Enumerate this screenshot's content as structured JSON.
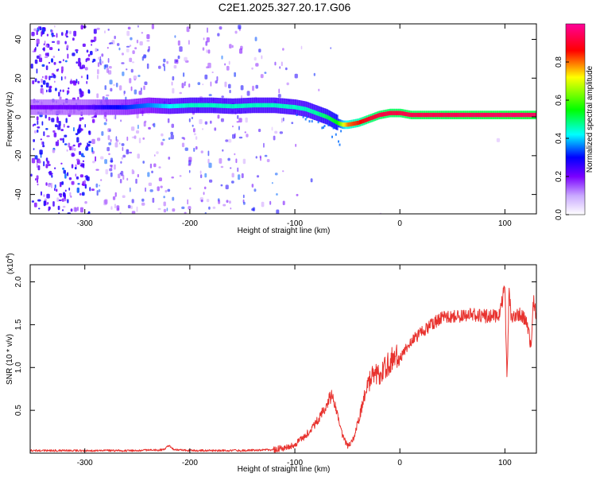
{
  "title": "C2E1.2025.327.20.17.G06",
  "chart_data": [
    {
      "type": "heatmap",
      "name": "spectrogram",
      "xlabel": "Height of straight line (km)",
      "ylabel": "Frequency (Hz)",
      "xlim": [
        -352,
        130
      ],
      "ylim": [
        -50,
        48
      ],
      "xticks": [
        -300,
        -200,
        -100,
        0,
        100
      ],
      "xtick_labels": [
        "-300",
        "-200",
        "-100",
        "0",
        "100"
      ],
      "yticks": [
        -40,
        -20,
        0,
        20,
        40
      ],
      "ytick_labels": [
        "-40",
        "-20",
        "0",
        "20",
        "40"
      ],
      "ridge": {
        "x": [
          -352,
          -300,
          -280,
          -260,
          -240,
          -220,
          -200,
          -180,
          -160,
          -140,
          -120,
          -100,
          -90,
          -80,
          -70,
          -60,
          -55,
          -50,
          -40,
          -30,
          -20,
          -10,
          0,
          10,
          20,
          40,
          60,
          80,
          100,
          120,
          130
        ],
        "y": [
          5,
          5,
          5,
          5,
          6,
          5.5,
          6,
          6,
          5.5,
          6,
          6,
          5,
          4,
          2,
          0,
          -3,
          -4,
          -4,
          -3,
          -1,
          1,
          2,
          2,
          1,
          1,
          1,
          1,
          1,
          1,
          1,
          1
        ],
        "amplitude": [
          0.2,
          0.22,
          0.28,
          0.32,
          0.36,
          0.42,
          0.45,
          0.45,
          0.45,
          0.45,
          0.45,
          0.45,
          0.45,
          0.47,
          0.5,
          0.55,
          0.7,
          0.8,
          0.85,
          0.9,
          0.92,
          0.92,
          0.92,
          0.93,
          0.93,
          0.93,
          0.94,
          0.94,
          0.95,
          0.95,
          0.95
        ]
      },
      "colorbar": {
        "label": "Normalized spectral amplitude",
        "range": [
          0.0,
          1.0
        ],
        "ticks": [
          0.0,
          0.2,
          0.4,
          0.6,
          0.8
        ],
        "tick_labels": [
          "0.0",
          "0.2",
          "0.4",
          "0.6",
          "0.8"
        ],
        "colormap": [
          "#ffffff",
          "#7a00ff",
          "#0000ff",
          "#00ffff",
          "#00ff00",
          "#ffff00",
          "#ff0000",
          "#ff0099"
        ]
      }
    },
    {
      "type": "line",
      "name": "snr",
      "xlabel": "Height of straight line (km)",
      "ylabel": "SNR (10 * v/v)",
      "y_multiplier": "(x10",
      "y_exponent": "4",
      "xlim": [
        -352,
        130
      ],
      "ylim": [
        0,
        2.2
      ],
      "xticks": [
        -300,
        -200,
        -100,
        0,
        100
      ],
      "xtick_labels": [
        "-300",
        "-200",
        "-100",
        "0",
        "100"
      ],
      "yticks": [
        0.5,
        1.0,
        1.5,
        2.0
      ],
      "ytick_labels": [
        "0.5",
        "1.0",
        "1.5",
        "2.0"
      ],
      "series": [
        {
          "name": "SNR",
          "color": "#e8322e",
          "x": [
            -352,
            -300,
            -250,
            -225,
            -220,
            -215,
            -200,
            -150,
            -120,
            -110,
            -100,
            -90,
            -80,
            -70,
            -65,
            -60,
            -58,
            -55,
            -50,
            -45,
            -40,
            -35,
            -30,
            -25,
            -20,
            -15,
            -10,
            -5,
            0,
            5,
            10,
            20,
            30,
            40,
            50,
            60,
            70,
            80,
            90,
            95,
            100,
            102,
            104,
            106,
            110,
            115,
            120,
            123,
            125,
            127,
            130
          ],
          "y": [
            0.03,
            0.03,
            0.03,
            0.04,
            0.09,
            0.04,
            0.03,
            0.03,
            0.04,
            0.06,
            0.1,
            0.2,
            0.35,
            0.55,
            0.7,
            0.5,
            0.35,
            0.22,
            0.08,
            0.15,
            0.35,
            0.6,
            0.8,
            0.95,
            0.9,
            1.0,
            1.05,
            1.15,
            1.1,
            1.2,
            1.3,
            1.4,
            1.5,
            1.58,
            1.6,
            1.6,
            1.62,
            1.6,
            1.6,
            1.62,
            1.95,
            0.85,
            1.9,
            1.6,
            1.6,
            1.62,
            1.55,
            1.4,
            1.2,
            1.8,
            1.6
          ]
        }
      ]
    }
  ]
}
